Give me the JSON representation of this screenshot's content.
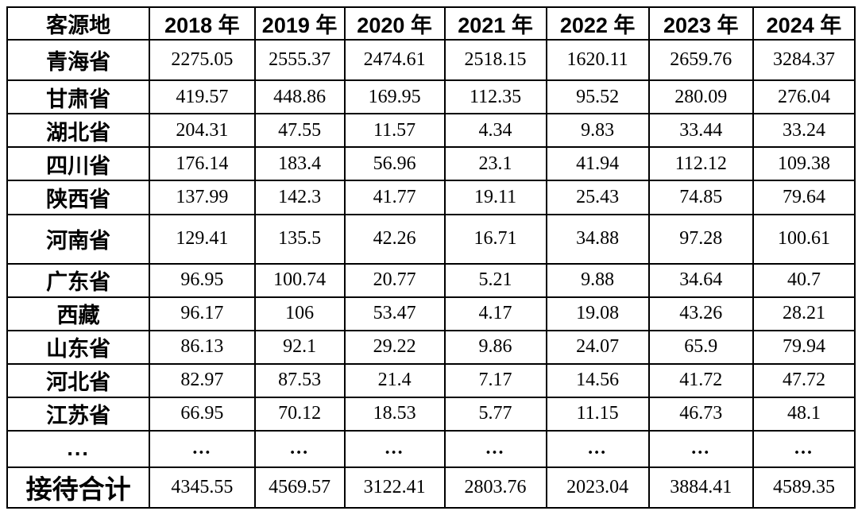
{
  "chart_data": {
    "type": "table",
    "title": "",
    "columns": [
      "客源地",
      "2018 年",
      "2019 年",
      "2020 年",
      "2021 年",
      "2022 年",
      "2023 年",
      "2024 年"
    ],
    "rows": [
      {
        "label": "青海省",
        "values": [
          "2275.05",
          "2555.37",
          "2474.61",
          "2518.15",
          "1620.11",
          "2659.76",
          "3284.37"
        ]
      },
      {
        "label": "甘肃省",
        "values": [
          "419.57",
          "448.86",
          "169.95",
          "112.35",
          "95.52",
          "280.09",
          "276.04"
        ]
      },
      {
        "label": "湖北省",
        "values": [
          "204.31",
          "47.55",
          "11.57",
          "4.34",
          "9.83",
          "33.44",
          "33.24"
        ]
      },
      {
        "label": "四川省",
        "values": [
          "176.14",
          "183.4",
          "56.96",
          "23.1",
          "41.94",
          "112.12",
          "109.38"
        ]
      },
      {
        "label": "陕西省",
        "values": [
          "137.99",
          "142.3",
          "41.77",
          "19.11",
          "25.43",
          "74.85",
          "79.64"
        ]
      },
      {
        "label": "河南省",
        "values": [
          "129.41",
          "135.5",
          "42.26",
          "16.71",
          "34.88",
          "97.28",
          "100.61"
        ]
      },
      {
        "label": "广东省",
        "values": [
          "96.95",
          "100.74",
          "20.77",
          "5.21",
          "9.88",
          "34.64",
          "40.7"
        ]
      },
      {
        "label": "西藏",
        "values": [
          "96.17",
          "106",
          "53.47",
          "4.17",
          "19.08",
          "43.26",
          "28.21"
        ]
      },
      {
        "label": "山东省",
        "values": [
          "86.13",
          "92.1",
          "29.22",
          "9.86",
          "24.07",
          "65.9",
          "79.94"
        ]
      },
      {
        "label": "河北省",
        "values": [
          "82.97",
          "87.53",
          "21.4",
          "7.17",
          "14.56",
          "41.72",
          "47.72"
        ]
      },
      {
        "label": "江苏省",
        "values": [
          "66.95",
          "70.12",
          "18.53",
          "5.77",
          "11.15",
          "46.73",
          "48.1"
        ]
      },
      {
        "label": "...",
        "values": [
          "...",
          "...",
          "...",
          "...",
          "...",
          "...",
          "..."
        ]
      },
      {
        "label": "接待合计",
        "values": [
          "4345.55",
          "4569.57",
          "3122.41",
          "2803.76",
          "2023.04",
          "3884.41",
          "4589.35"
        ]
      }
    ],
    "colors": {
      "border": "#000000",
      "text": "#000000",
      "background": "#ffffff"
    }
  }
}
